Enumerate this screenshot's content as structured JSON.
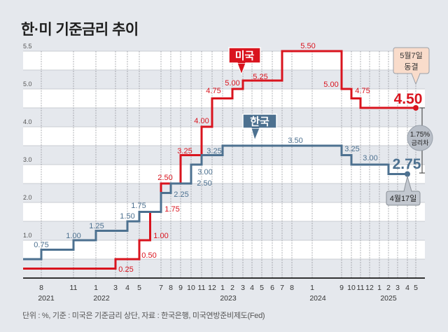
{
  "title": "한·미 기준금리 추이",
  "footnote": "단위 : %, 기준 : 미국은 기준금리 상단, 자료 : 한국은행, 미국연방준비제도(Fed)",
  "chart_data": {
    "type": "line",
    "step": true,
    "title": "한·미 기준금리 추이",
    "xlabel": "",
    "ylabel": "",
    "ylim": [
      0,
      5.5
    ],
    "grid": true,
    "y_ticks": [
      "1.0",
      "2.0",
      "3.0",
      "4.0",
      "5.0",
      "5.5"
    ],
    "x_ticks": [
      {
        "label": "8",
        "date": "2021-08"
      },
      {
        "label": "11",
        "date": "2021-11"
      },
      {
        "label": "1",
        "date": "2022-01"
      },
      {
        "label": "3",
        "date": "2022-03"
      },
      {
        "label": "4",
        "date": "2022-04"
      },
      {
        "label": "5",
        "date": "2022-05"
      },
      {
        "label": "7",
        "date": "2022-07"
      },
      {
        "label": "8",
        "date": "2022-08"
      },
      {
        "label": "9",
        "date": "2022-09"
      },
      {
        "label": "10",
        "date": "2022-10"
      },
      {
        "label": "11",
        "date": "2022-11"
      },
      {
        "label": "12",
        "date": "2022-12"
      },
      {
        "label": "1",
        "date": "2023-01"
      },
      {
        "label": "2",
        "date": "2023-02"
      },
      {
        "label": "3",
        "date": "2023-03"
      },
      {
        "label": "4",
        "date": "2023-04"
      },
      {
        "label": "5",
        "date": "2023-05"
      },
      {
        "label": "6",
        "date": "2023-06"
      },
      {
        "label": "7",
        "date": "2023-07"
      },
      {
        "label": "8",
        "date": "2023-08"
      },
      {
        "label": "1",
        "date": "2024-01"
      },
      {
        "label": "9",
        "date": "2024-09"
      },
      {
        "label": "10",
        "date": "2024-10"
      },
      {
        "label": "11",
        "date": "2024-11"
      },
      {
        "label": "12",
        "date": "2024-12"
      },
      {
        "label": "1",
        "date": "2025-01"
      },
      {
        "label": "2",
        "date": "2025-02"
      },
      {
        "label": "3",
        "date": "2025-03"
      },
      {
        "label": "4",
        "date": "2025-04"
      },
      {
        "label": "5",
        "date": "2025-05"
      }
    ],
    "year_labels": [
      "2021",
      "2022",
      "2023",
      "2024",
      "2025"
    ],
    "series": [
      {
        "name": "미국",
        "color": "#d9141e",
        "end": "2025-05",
        "points": [
          {
            "date": null,
            "value": 0.25,
            "label": "0.25"
          },
          {
            "date": "2022-03",
            "value": 0.5,
            "label": "0.50"
          },
          {
            "date": "2022-05",
            "value": 1.0,
            "label": "1.00"
          },
          {
            "date": "2022-06",
            "value": 1.75,
            "label": "1.75"
          },
          {
            "date": "2022-07",
            "value": 2.5,
            "label": "2.50"
          },
          {
            "date": "2022-09",
            "value": 3.25,
            "label": "3.25"
          },
          {
            "date": "2022-11",
            "value": 4.0,
            "label": "4.00"
          },
          {
            "date": "2022-12",
            "value": 4.75,
            "label": "4.75"
          },
          {
            "date": "2023-02",
            "value": 5.0,
            "label": "5.00"
          },
          {
            "date": "2023-03",
            "value": 5.25,
            "label": "5.25"
          },
          {
            "date": "2023-07",
            "value": 5.5,
            "label": "5.50"
          },
          {
            "date": "2024-09",
            "value": 5.0,
            "label": "5.00"
          },
          {
            "date": "2024-10",
            "value": 4.75,
            "label": "4.75"
          },
          {
            "date": "2024-11",
            "value": 4.5,
            "label": "4.50"
          }
        ]
      },
      {
        "name": "한국",
        "color": "#4d7190",
        "end": "2025-04",
        "points": [
          {
            "date": null,
            "value": 0.5,
            "label": null
          },
          {
            "date": "2021-08",
            "value": 0.75,
            "label": "0.75"
          },
          {
            "date": "2021-11",
            "value": 1.0,
            "label": "1.00"
          },
          {
            "date": "2022-01",
            "value": 1.25,
            "label": "1.25"
          },
          {
            "date": "2022-04",
            "value": 1.5,
            "label": "1.50"
          },
          {
            "date": "2022-05",
            "value": 1.75,
            "label": "1.75"
          },
          {
            "date": "2022-07",
            "value": 2.25,
            "label": "2.25"
          },
          {
            "date": "2022-08",
            "value": 2.5,
            "label": "2.50"
          },
          {
            "date": "2022-10",
            "value": 3.0,
            "label": "3.00"
          },
          {
            "date": "2022-11",
            "value": 3.25,
            "label": "3.25"
          },
          {
            "date": "2023-01",
            "value": 3.5,
            "label": "3.50"
          },
          {
            "date": "2024-09",
            "value": 3.25,
            "label": "3.25"
          },
          {
            "date": "2024-10",
            "value": 3.0,
            "label": "3.00"
          },
          {
            "date": "2025-02",
            "value": 2.75,
            "label": "2.75"
          }
        ]
      }
    ],
    "annotations": {
      "us_callout": [
        "5월7일",
        "동결"
      ],
      "korea_callout": "4월17일",
      "gap": [
        "1.75%",
        "금리차"
      ]
    }
  }
}
